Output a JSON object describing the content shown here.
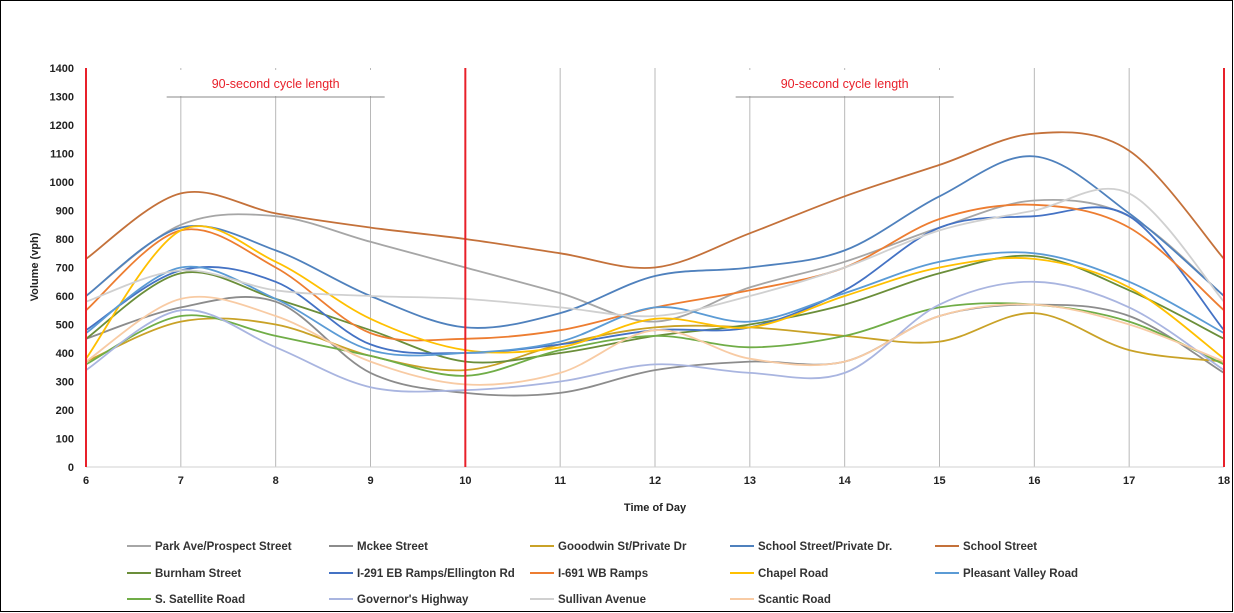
{
  "chart_data": {
    "type": "line",
    "xlabel": "Time of Day",
    "ylabel": "Volume (vph)",
    "xlim": [
      6,
      18
    ],
    "ylim": [
      0,
      1400
    ],
    "x_ticks": [
      6,
      7,
      8,
      9,
      10,
      11,
      12,
      13,
      14,
      15,
      16,
      17,
      18
    ],
    "y_ticks": [
      0,
      100,
      200,
      300,
      400,
      500,
      600,
      700,
      800,
      900,
      1000,
      1100,
      1200,
      1300,
      1400
    ],
    "grid": "vertical",
    "legend_position": "bottom",
    "annotations": [
      {
        "text": "90-second cycle length",
        "x_from": 6,
        "x_to": 10
      },
      {
        "text": "90-second cycle length",
        "x_from": 10,
        "x_to": 18
      }
    ],
    "cycle_markers_x": [
      6,
      10,
      18
    ],
    "x": [
      6,
      7,
      8,
      9,
      10,
      11,
      12,
      13,
      14,
      15,
      16,
      17,
      18
    ],
    "series": [
      {
        "name": "Park Ave/Prospect Street",
        "color": "#a6a6a6",
        "values": [
          600,
          850,
          880,
          790,
          700,
          610,
          510,
          630,
          720,
          840,
          935,
          880,
          600
        ]
      },
      {
        "name": "Mckee Street",
        "color": "#8c8c8c",
        "values": [
          450,
          560,
          580,
          330,
          260,
          260,
          340,
          370,
          370,
          530,
          570,
          530,
          330
        ]
      },
      {
        "name": "Gooodwin St/Private Dr",
        "color": "#c9a227",
        "values": [
          370,
          510,
          500,
          390,
          340,
          430,
          490,
          490,
          460,
          440,
          540,
          410,
          370
        ]
      },
      {
        "name": "School Street/Private Dr.",
        "color": "#4f81bd",
        "values": [
          600,
          840,
          760,
          600,
          490,
          540,
          670,
          700,
          760,
          950,
          1090,
          890,
          600
        ]
      },
      {
        "name": "School Street",
        "color": "#c4713a",
        "values": [
          730,
          960,
          890,
          840,
          800,
          750,
          700,
          820,
          950,
          1060,
          1170,
          1110,
          730
        ]
      },
      {
        "name": "Burnham Street",
        "color": "#6b8e3a",
        "values": [
          450,
          680,
          590,
          480,
          370,
          400,
          460,
          500,
          570,
          680,
          740,
          620,
          450
        ]
      },
      {
        "name": "I-291 EB Ramps/Ellington Rd",
        "color": "#4472c4",
        "values": [
          480,
          690,
          650,
          430,
          400,
          430,
          480,
          490,
          620,
          840,
          880,
          880,
          480
        ]
      },
      {
        "name": "I-691 WB Ramps",
        "color": "#ed7d31",
        "values": [
          550,
          830,
          700,
          470,
          450,
          480,
          560,
          620,
          700,
          870,
          920,
          840,
          550
        ]
      },
      {
        "name": "Chapel Road",
        "color": "#ffc000",
        "values": [
          380,
          830,
          720,
          520,
          410,
          420,
          520,
          490,
          600,
          700,
          730,
          630,
          380
        ]
      },
      {
        "name": "Pleasant Valley Road",
        "color": "#5b9bd5",
        "values": [
          470,
          700,
          590,
          410,
          400,
          440,
          560,
          510,
          610,
          720,
          750,
          650,
          470
        ]
      },
      {
        "name": "S. Satellite Road",
        "color": "#70ad47",
        "values": [
          360,
          530,
          460,
          390,
          320,
          410,
          460,
          420,
          460,
          560,
          570,
          510,
          360
        ]
      },
      {
        "name": "Governor's Highway",
        "color": "#a9b5e0",
        "values": [
          340,
          550,
          420,
          280,
          270,
          300,
          360,
          330,
          330,
          570,
          650,
          560,
          340
        ]
      },
      {
        "name": "Sullivan Avenue",
        "color": "#d0d0d0",
        "values": [
          580,
          690,
          620,
          600,
          590,
          560,
          530,
          600,
          700,
          830,
          900,
          960,
          580
        ]
      },
      {
        "name": "Scantic Road",
        "color": "#f8cba4",
        "values": [
          370,
          590,
          530,
          370,
          290,
          330,
          480,
          380,
          370,
          530,
          570,
          500,
          370
        ]
      }
    ]
  }
}
